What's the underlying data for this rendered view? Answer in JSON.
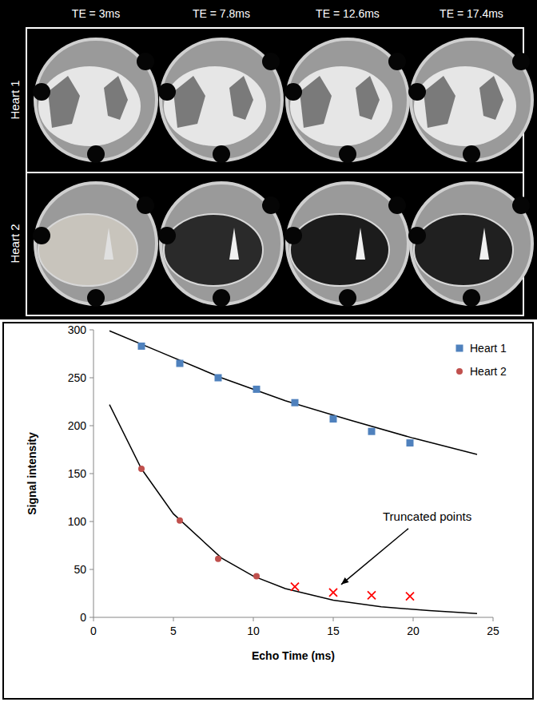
{
  "image_panel": {
    "columns": [
      "TE = 3ms",
      "TE = 7.8ms",
      "TE = 12.6ms",
      "TE = 17.4ms"
    ],
    "rows": [
      "Heart 1",
      "Heart 2"
    ]
  },
  "chart_data": {
    "type": "scatter",
    "x_label": "Echo Time (ms)",
    "y_label": "Signal intensity",
    "xlim": [
      0,
      25
    ],
    "xticks": [
      0,
      5,
      10,
      15,
      20,
      25
    ],
    "ylim": [
      0,
      300
    ],
    "yticks": [
      0,
      50,
      100,
      150,
      200,
      250,
      300
    ],
    "grid": false,
    "legend": "upper right",
    "series": [
      {
        "name": "Heart 1",
        "type": "scatter",
        "color": "#4f81bd",
        "marker": "square",
        "x": [
          3,
          5.4,
          7.8,
          10.2,
          12.6,
          15,
          17.4,
          19.8
        ],
        "values": [
          283,
          265,
          250,
          238,
          224,
          207,
          194,
          182
        ]
      },
      {
        "name": "Heart 2",
        "type": "scatter",
        "color": "#c0504d",
        "marker": "circle",
        "x": [
          3,
          5.4,
          7.8,
          10.2
        ],
        "values": [
          155,
          101,
          61,
          43
        ]
      },
      {
        "type": "scatter",
        "color": "#ff0000",
        "marker": "x",
        "x": [
          12.6,
          15,
          17.4,
          19.8
        ],
        "values": [
          32,
          26,
          23,
          22
        ]
      },
      {
        "type": "line",
        "color": "#000000",
        "line_style": "solid",
        "x": [
          1,
          4,
          8,
          12,
          16,
          20,
          24
        ],
        "values": [
          299,
          278,
          250,
          226,
          206,
          187,
          170
        ]
      },
      {
        "type": "line",
        "color": "#000000",
        "line_style": "solid",
        "x": [
          1,
          3,
          5,
          8,
          10,
          12,
          15,
          18,
          21,
          24
        ],
        "values": [
          222,
          155,
          108,
          62,
          43,
          30,
          18,
          11,
          7,
          4
        ]
      }
    ],
    "annotations": [
      {
        "text": "Truncated points"
      }
    ]
  }
}
